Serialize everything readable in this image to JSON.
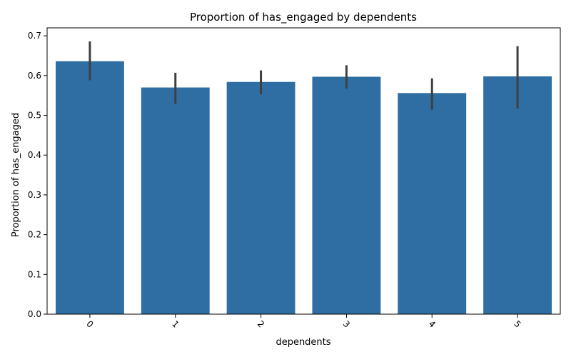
{
  "chart_data": {
    "type": "bar",
    "title": "Proportion of has_engaged by dependents",
    "xlabel": "dependents",
    "ylabel": "Proportion of has_engaged",
    "categories": [
      "0",
      "1",
      "2",
      "3",
      "4",
      "5"
    ],
    "values": [
      0.636,
      0.57,
      0.584,
      0.597,
      0.556,
      0.598
    ],
    "ci_low": [
      0.588,
      0.529,
      0.553,
      0.567,
      0.514,
      0.517
    ],
    "ci_high": [
      0.686,
      0.607,
      0.613,
      0.626,
      0.593,
      0.674
    ],
    "yticks": [
      "0.0",
      "0.1",
      "0.2",
      "0.3",
      "0.4",
      "0.5",
      "0.6",
      "0.7"
    ],
    "ylim": [
      0,
      0.72
    ],
    "bar_color": "#2e6ea3",
    "errorbar_color": "#3f3f3f",
    "xtick_rotation": 45,
    "grid": false
  }
}
